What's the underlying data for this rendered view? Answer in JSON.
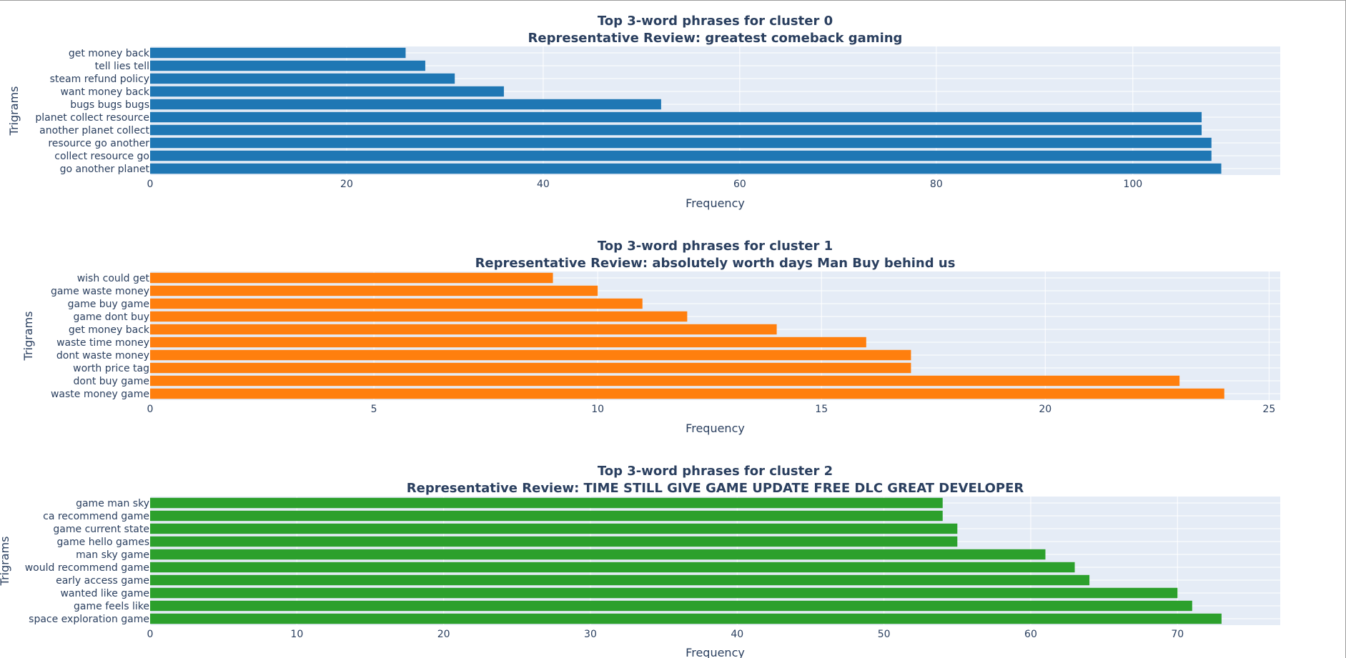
{
  "chart_data": [
    {
      "type": "bar",
      "orientation": "horizontal",
      "title": "Top 3-word phrases for cluster 0",
      "subtitle": "Representative Review: greatest comeback gaming",
      "xlabel": "Frequency",
      "ylabel": "Trigrams",
      "xlim": [
        0,
        115
      ],
      "xticks": [
        0,
        20,
        40,
        60,
        80,
        100
      ],
      "grid": true,
      "color": "#1f77b4",
      "categories": [
        "get money back",
        "tell lies tell",
        "steam refund policy",
        "want money back",
        "bugs bugs bugs",
        "planet collect resource",
        "another planet collect",
        "resource go another",
        "collect resource go",
        "go another planet"
      ],
      "values": [
        26,
        28,
        31,
        36,
        52,
        107,
        107,
        108,
        108,
        109
      ]
    },
    {
      "type": "bar",
      "orientation": "horizontal",
      "title": "Top 3-word phrases for cluster 1",
      "subtitle": "Representative Review: absolutely worth days Man Buy behind us",
      "xlabel": "Frequency",
      "ylabel": "Trigrams",
      "xlim": [
        0,
        25.25
      ],
      "xticks": [
        0,
        5,
        10,
        15,
        20,
        25
      ],
      "grid": true,
      "color": "#ff7f0e",
      "categories": [
        "wish could get",
        "game waste money",
        "game buy game",
        "game dont buy",
        "get money back",
        "waste time money",
        "dont waste money",
        "worth price tag",
        "dont buy game",
        "waste money game"
      ],
      "values": [
        9,
        10,
        11,
        12,
        14,
        16,
        17,
        17,
        23,
        24
      ]
    },
    {
      "type": "bar",
      "orientation": "horizontal",
      "title": "Top 3-word phrases for cluster 2",
      "subtitle": "Representative Review: TIME STILL GIVE GAME UPDATE FREE DLC GREAT DEVELOPER",
      "xlabel": "Frequency",
      "ylabel": "Trigrams",
      "xlim": [
        0,
        77
      ],
      "xticks": [
        0,
        10,
        20,
        30,
        40,
        50,
        60,
        70
      ],
      "grid": true,
      "color": "#2ca02c",
      "categories": [
        "game man sky",
        "ca recommend game",
        "game current state",
        "game hello games",
        "man sky game",
        "would recommend game",
        "early access game",
        "wanted like game",
        "game feels like",
        "space exploration game"
      ],
      "values": [
        54,
        54,
        55,
        55,
        61,
        63,
        64,
        70,
        71,
        73
      ]
    }
  ]
}
